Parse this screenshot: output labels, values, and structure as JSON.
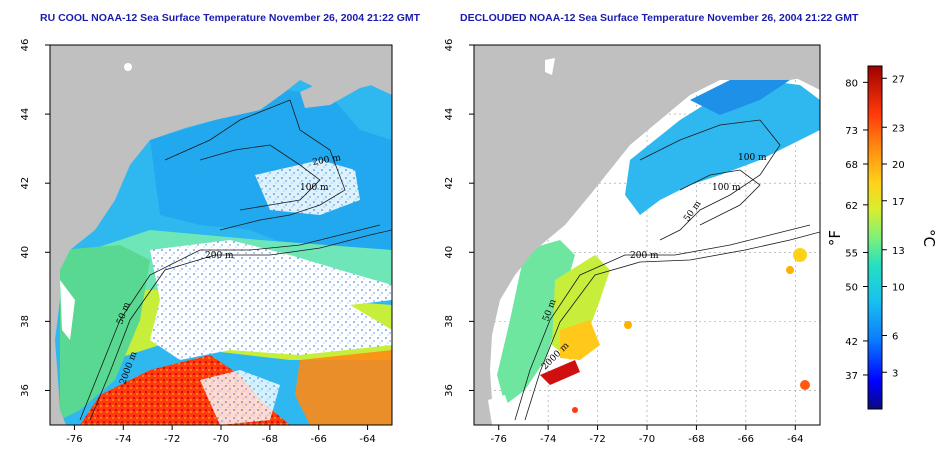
{
  "left_map": {
    "title": "RU COOL NOAA-12 Sea Surface Temperature November 26, 2004 21:22 GMT",
    "contour_labels": [
      "100 m",
      "200 m",
      "50 m",
      "200 m",
      "2000 m"
    ]
  },
  "right_map": {
    "title": "DECLOUDED NOAA-12 Sea Surface Temperature November 26, 2004 21:22 GMT",
    "contour_labels": [
      "100 m",
      "100 m",
      "50 m",
      "200 m",
      "50 m",
      "2000 m"
    ]
  },
  "axes": {
    "lon_ticks": [
      "-76",
      "-74",
      "-72",
      "-70",
      "-68",
      "-66",
      "-64"
    ],
    "lat_ticks": [
      "36",
      "38",
      "40",
      "42",
      "44",
      "46"
    ]
  },
  "colorbar": {
    "fahrenheit_ticks": [
      "80",
      "73",
      "68",
      "62",
      "55",
      "50",
      "42",
      "37"
    ],
    "celsius_ticks": [
      "27",
      "23",
      "20",
      "17",
      "13",
      "10",
      "6",
      "3"
    ],
    "unit_f": "°F",
    "unit_c": "°C"
  },
  "colors": {
    "land": "#c0c0c0",
    "cloud": "#ffffff",
    "title": "#1b1bb0",
    "grid": "#9a9a9a"
  },
  "icons": [
    "colorbar-gradient"
  ]
}
